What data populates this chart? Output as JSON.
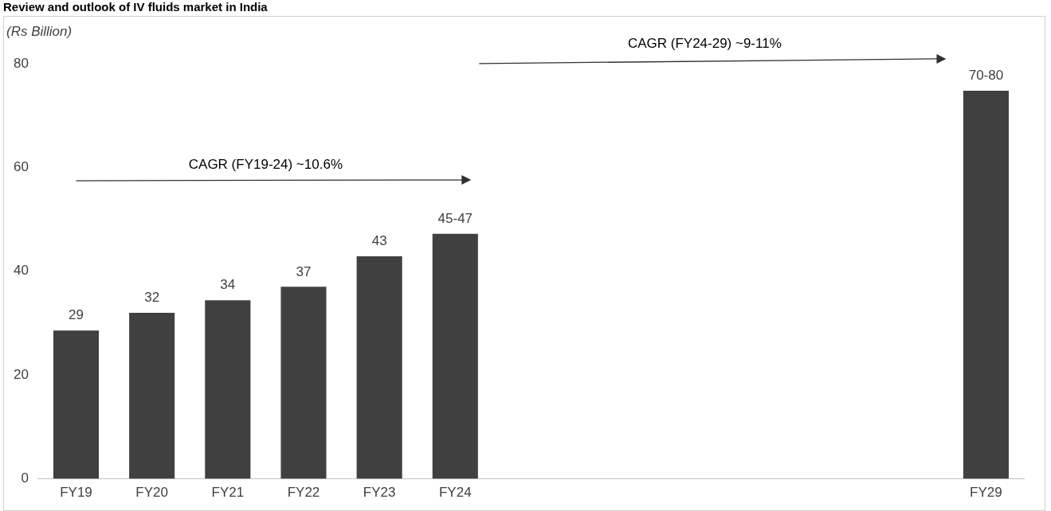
{
  "chart_data": {
    "type": "bar",
    "title": "Review and outlook of IV fluids market in India",
    "ylabel": "(Rs Billion)",
    "categories": [
      "FY19",
      "FY20",
      "FY21",
      "FY22",
      "FY23",
      "FY24",
      null,
      null,
      null,
      null,
      null,
      null,
      "FY29"
    ],
    "values": [
      28.6,
      32,
      34.4,
      37,
      42.9,
      47.2,
      null,
      null,
      null,
      null,
      null,
      null,
      74.8
    ],
    "value_labels": [
      "29",
      "32",
      "34",
      "37",
      "43",
      "45-47",
      null,
      null,
      null,
      null,
      null,
      null,
      "70-80"
    ],
    "color": "#404040",
    "ylim": [
      0,
      80
    ],
    "yticks": [
      0,
      20,
      40,
      60,
      80
    ],
    "grid": false,
    "legend": false,
    "annotations": [
      "CAGR (FY19-24) ~10.6%",
      "CAGR (FY24-29) ~9-11%"
    ]
  }
}
